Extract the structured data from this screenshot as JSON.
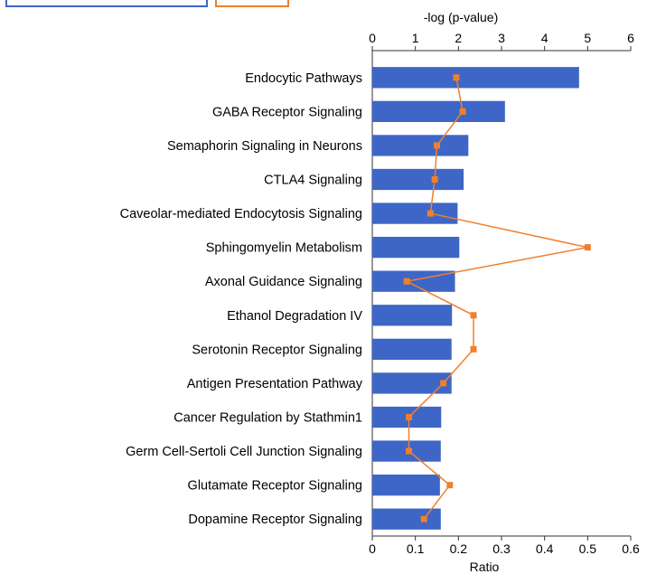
{
  "chart_data": {
    "type": "bar",
    "title": "",
    "orientation": "horizontal",
    "categories": [
      "Endocytic Pathways",
      "GABA Receptor Signaling",
      "Semaphorin Signaling in Neurons",
      "CTLA4 Signaling",
      "Caveolar-mediated Endocytosis Signaling",
      "Sphingomyelin Metabolism",
      "Axonal Guidance Signaling",
      "Ethanol Degradation IV",
      "Serotonin Receptor Signaling",
      "Antigen Presentation Pathway",
      "Cancer Regulation by Stathmin1",
      "Germ Cell-Sertoli Cell Junction Signaling",
      "Glutamate Receptor Signaling",
      "Dopamine Receptor Signaling"
    ],
    "series": [
      {
        "type": "bar",
        "axis": "top",
        "values": [
          4.8,
          3.08,
          2.23,
          2.12,
          1.98,
          2.02,
          1.92,
          1.85,
          1.84,
          1.84,
          1.6,
          1.59,
          1.57,
          1.59
        ],
        "color": "#3d66c7"
      },
      {
        "type": "line",
        "axis": "bottom",
        "values": [
          0.195,
          0.21,
          0.15,
          0.145,
          0.135,
          0.5,
          0.08,
          0.235,
          0.235,
          0.165,
          0.085,
          0.085,
          0.18,
          0.12
        ],
        "color": "#f07f2c"
      }
    ],
    "top_axis": {
      "label": "-log (p-value)",
      "range": [
        0,
        6
      ],
      "ticks": [
        "0",
        "1",
        "2",
        "3",
        "4",
        "5",
        "6"
      ]
    },
    "bottom_axis": {
      "label": "Ratio",
      "range": [
        0,
        0.6
      ],
      "ticks": [
        "0",
        "0.1",
        "0.2",
        "0.3",
        "0.4",
        "0.5",
        "0.6"
      ]
    },
    "grid": false,
    "legend_placement": "top-left"
  }
}
